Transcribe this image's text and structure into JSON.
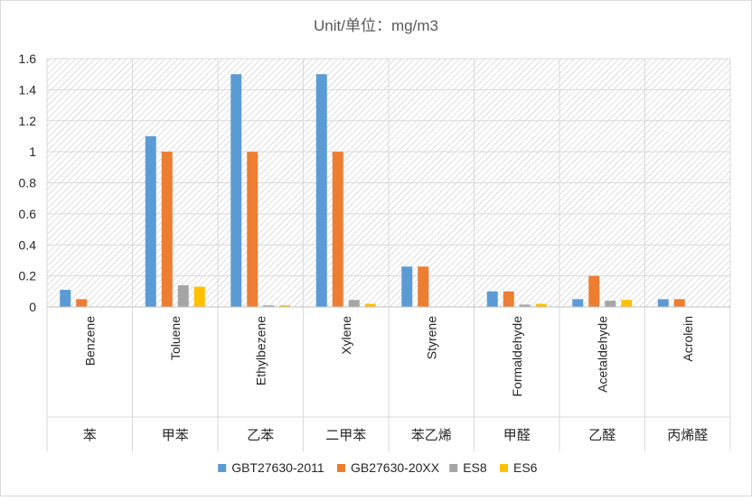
{
  "chart_data": {
    "type": "bar",
    "title": "Unit/单位：mg/m3",
    "categories": [
      "Benzene",
      "Toluene",
      "Ethylbezene",
      "Xylene",
      "Styrene",
      "Formaldehyde",
      "Acetaldehyde",
      "Acrolein"
    ],
    "categories_cn": [
      "苯",
      "甲苯",
      "乙苯",
      "二甲苯",
      "苯乙烯",
      "甲醛",
      "乙醛",
      "丙烯醛"
    ],
    "series": [
      {
        "name": "GBT27630-2011",
        "color": "#5B9BD5",
        "values": [
          0.11,
          1.1,
          1.5,
          1.5,
          0.26,
          0.1,
          0.05,
          0.05
        ]
      },
      {
        "name": "GB27630-20XX",
        "color": "#ED7D31",
        "values": [
          0.05,
          1.0,
          1.0,
          1.0,
          0.26,
          0.1,
          0.2,
          0.05
        ]
      },
      {
        "name": "ES8",
        "color": "#A5A5A5",
        "values": [
          null,
          0.14,
          0.01,
          0.045,
          null,
          0.015,
          0.04,
          null
        ]
      },
      {
        "name": "ES6",
        "color": "#FFC000",
        "values": [
          null,
          0.13,
          0.01,
          0.02,
          null,
          0.02,
          0.045,
          null
        ]
      }
    ],
    "ylim": [
      0,
      1.6
    ],
    "yticks": [
      "0",
      "0.2",
      "0.4",
      "0.6",
      "0.8",
      "1",
      "1.2",
      "1.4",
      "1.6"
    ],
    "grid": true,
    "legend": "bottom"
  }
}
